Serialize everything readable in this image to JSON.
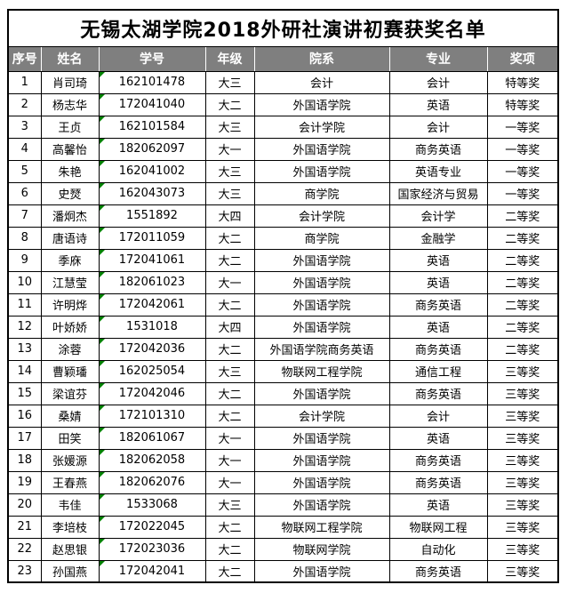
{
  "page": {
    "title": "无锡太湖学院2018外研社演讲初赛获奖名单"
  },
  "colors": {
    "header_bg": "#7f7f7f",
    "header_text": "#ffffff",
    "border": "#000000",
    "flag_green": "#008000",
    "page_bg": "#ffffff",
    "cell_text": "#000000"
  },
  "icons": {
    "cell_flag": "green-corner-flag-icon"
  },
  "table": {
    "headers": [
      "序号",
      "姓名",
      "学号",
      "年级",
      "院系",
      "专业",
      "奖项"
    ],
    "columns": [
      "no",
      "name",
      "student_id",
      "grade",
      "department",
      "major",
      "award"
    ],
    "rows": [
      {
        "no": "1",
        "name": "肖司琦",
        "student_id": "162101478",
        "grade": "大三",
        "department": "会计",
        "major": "会计",
        "award": "特等奖"
      },
      {
        "no": "2",
        "name": "杨志华",
        "student_id": "172041040",
        "grade": "大二",
        "department": "外国语学院",
        "major": "英语",
        "award": "特等奖"
      },
      {
        "no": "3",
        "name": "王贞",
        "student_id": "162101584",
        "grade": "大三",
        "department": "会计学院",
        "major": "会计",
        "award": "一等奖"
      },
      {
        "no": "4",
        "name": "高馨怡",
        "student_id": "182062097",
        "grade": "大一",
        "department": "外国语学院",
        "major": "商务英语",
        "award": "一等奖"
      },
      {
        "no": "5",
        "name": "朱艳",
        "student_id": "162041002",
        "grade": "大三",
        "department": "外国语学院",
        "major": "英语专业",
        "award": "一等奖"
      },
      {
        "no": "6",
        "name": "史燹",
        "student_id": "162043073",
        "grade": "大三",
        "department": "商学院",
        "major": "国家经济与贸易",
        "award": "一等奖"
      },
      {
        "no": "7",
        "name": "潘炯杰",
        "student_id": "1551892",
        "grade": "大四",
        "department": "会计学院",
        "major": "会计学",
        "award": "二等奖"
      },
      {
        "no": "8",
        "name": "唐语诗",
        "student_id": "172011059",
        "grade": "大二",
        "department": "商学院",
        "major": "金融学",
        "award": "二等奖"
      },
      {
        "no": "9",
        "name": "季庥",
        "student_id": "172041061",
        "grade": "大二",
        "department": "外国语学院",
        "major": "英语",
        "award": "二等奖"
      },
      {
        "no": "10",
        "name": "江慧莹",
        "student_id": "182061023",
        "grade": "大一",
        "department": "外国语学院",
        "major": "英语",
        "award": "二等奖"
      },
      {
        "no": "11",
        "name": "许明烨",
        "student_id": "172042061",
        "grade": "大二",
        "department": "外国语学院",
        "major": "商务英语",
        "award": "二等奖"
      },
      {
        "no": "12",
        "name": "叶娇娇",
        "student_id": "1531018",
        "grade": "大四",
        "department": "外国语学院",
        "major": "英语",
        "award": "二等奖"
      },
      {
        "no": "13",
        "name": "涂蓉",
        "student_id": "172042036",
        "grade": "大二",
        "department": "外国语学院商务英语",
        "major": "商务英语",
        "award": "二等奖"
      },
      {
        "no": "14",
        "name": "曹颖璠",
        "student_id": "162025054",
        "grade": "大三",
        "department": "物联网工程学院",
        "major": "通信工程",
        "award": "三等奖"
      },
      {
        "no": "15",
        "name": "梁谊芬",
        "student_id": "172042046",
        "grade": "大二",
        "department": "外国语学院",
        "major": "商务英语",
        "award": "三等奖"
      },
      {
        "no": "16",
        "name": "桑婧",
        "student_id": "172101310",
        "grade": "大二",
        "department": "会计学院",
        "major": "会计",
        "award": "三等奖"
      },
      {
        "no": "17",
        "name": "田笑",
        "student_id": "182061067",
        "grade": "大一",
        "department": "外国语学院",
        "major": "英语",
        "award": "三等奖"
      },
      {
        "no": "18",
        "name": "张媛源",
        "student_id": "182062058",
        "grade": "大一",
        "department": "外国语学院",
        "major": "商务英语",
        "award": "三等奖"
      },
      {
        "no": "19",
        "name": "王春燕",
        "student_id": "182062076",
        "grade": "大一",
        "department": "外国语学院",
        "major": "商务英语",
        "award": "三等奖"
      },
      {
        "no": "20",
        "name": "韦佳",
        "student_id": "1533068",
        "grade": "大三",
        "department": "外国语学院",
        "major": "英语",
        "award": "三等奖"
      },
      {
        "no": "21",
        "name": "李培枝",
        "student_id": "172022045",
        "grade": "大二",
        "department": "物联网工程学院",
        "major": "物联网工程",
        "award": "三等奖"
      },
      {
        "no": "22",
        "name": "赵思银",
        "student_id": "172023036",
        "grade": "大二",
        "department": "物联网学院",
        "major": "自动化",
        "award": "三等奖"
      },
      {
        "no": "23",
        "name": "孙国燕",
        "student_id": "172042041",
        "grade": "大二",
        "department": "外国语学院",
        "major": "商务英语",
        "award": "三等奖"
      }
    ]
  }
}
